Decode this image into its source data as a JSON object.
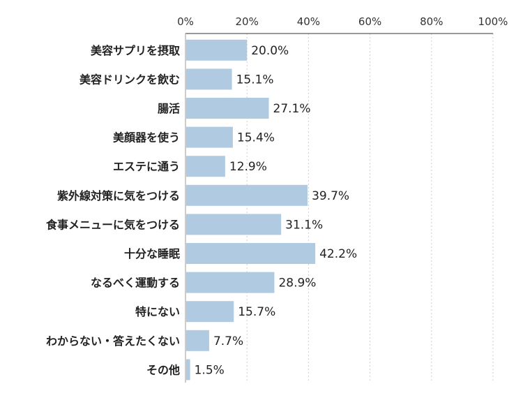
{
  "chart_data": {
    "type": "bar",
    "orientation": "horizontal",
    "categories": [
      "美容サプリを摂取",
      "美容ドリンクを飲む",
      "腸活",
      "美顔器を使う",
      "エステに通う",
      "紫外線対策に気をつける",
      "食事メニューに気をつける",
      "十分な睡眠",
      "なるべく運動する",
      "特にない",
      "わからない・答えたくない",
      "その他"
    ],
    "values": [
      20.0,
      15.1,
      27.1,
      15.4,
      12.9,
      39.7,
      31.1,
      42.2,
      28.9,
      15.7,
      7.7,
      1.5
    ],
    "value_labels": [
      "20.0%",
      "15.1%",
      "27.1%",
      "15.4%",
      "12.9%",
      "39.7%",
      "31.1%",
      "42.2%",
      "28.9%",
      "15.7%",
      "7.7%",
      "1.5%"
    ],
    "xlim": [
      0,
      100
    ],
    "xticks": [
      "0%",
      "20%",
      "40%",
      "60%",
      "80%",
      "100%"
    ],
    "xtick_values": [
      0,
      20,
      40,
      60,
      80,
      100
    ],
    "bar_color": "#b0cbe1",
    "grid": "dotted vertical",
    "title": "",
    "xlabel": "",
    "ylabel": ""
  }
}
